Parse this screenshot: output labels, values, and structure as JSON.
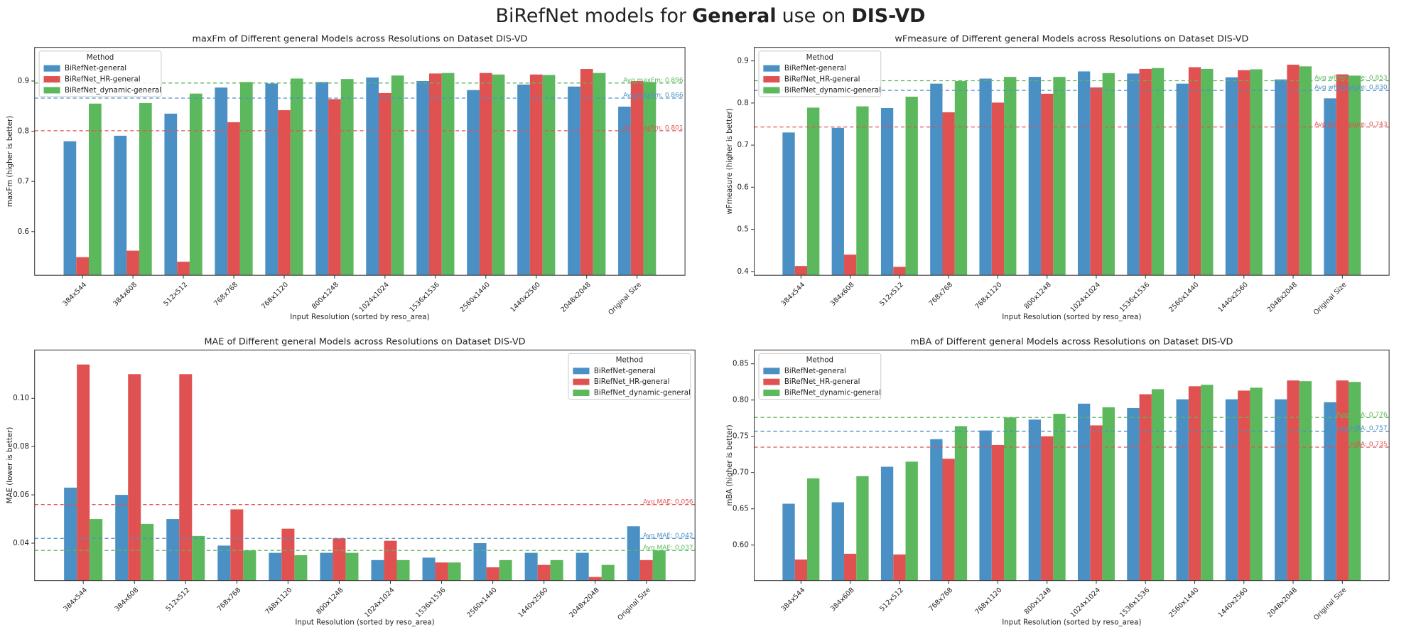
{
  "figure_title": [
    {
      "text": "BiRefNet models for",
      "bold": false
    },
    {
      "text": "General",
      "bold": true
    },
    {
      "text": "use on",
      "bold": false
    },
    {
      "text": "DIS-VD",
      "bold": true
    }
  ],
  "chart_data": [
    {
      "type": "bar",
      "title": "maxFm of Different general Models across Resolutions on Dataset DIS-VD",
      "xlabel": "Input Resolution (sorted by reso_area)",
      "ylabel": "maxFm (higher is better)",
      "categories": [
        "384x544",
        "384x608",
        "512x512",
        "768x768",
        "768x1120",
        "800x1248",
        "1024x1024",
        "1536x1536",
        "2560x1440",
        "1440x2560",
        "2048x2048",
        "Original Size"
      ],
      "series": [
        {
          "name": "BiRefNet-general",
          "color": "#4a90c4",
          "values": [
            0.78,
            0.791,
            0.835,
            0.887,
            0.895,
            0.898,
            0.907,
            0.9,
            0.882,
            0.893,
            0.889,
            0.849
          ]
        },
        {
          "name": "BiRefNet_HR-general",
          "color": "#e05252",
          "values": [
            0.549,
            0.562,
            0.54,
            0.818,
            0.842,
            0.864,
            0.876,
            0.915,
            0.916,
            0.913,
            0.924,
            0.9
          ]
        },
        {
          "name": "BiRefNet_dynamic-general",
          "color": "#5cb85c",
          "values": [
            0.855,
            0.856,
            0.875,
            0.898,
            0.905,
            0.904,
            0.911,
            0.916,
            0.913,
            0.912,
            0.916,
            0.898
          ]
        }
      ],
      "ylim": [
        0.513,
        0.967
      ],
      "yticks": [
        0.6,
        0.7,
        0.8,
        0.9
      ],
      "avg_lines": [
        {
          "value": 0.896,
          "label": "Avg maxFm: 0.896",
          "color": "#5cb85c"
        },
        {
          "value": 0.866,
          "label": "Avg maxFm: 0.866",
          "color": "#4a90c4"
        },
        {
          "value": 0.801,
          "label": "Avg maxFm: 0.801",
          "color": "#e05252"
        }
      ],
      "legend_title": "Method",
      "legend_loc": "upper left"
    },
    {
      "type": "bar",
      "title": "wFmeasure of Different general Models across Resolutions on Dataset DIS-VD",
      "xlabel": "Input Resolution (sorted by reso_area)",
      "ylabel": "wFmeasure (higher is better)",
      "categories": [
        "384x544",
        "384x608",
        "512x512",
        "768x768",
        "768x1120",
        "800x1248",
        "1024x1024",
        "1536x1536",
        "2560x1440",
        "1440x2560",
        "2048x2048",
        "Original Size"
      ],
      "series": [
        {
          "name": "BiRefNet-general",
          "color": "#4a90c4",
          "values": [
            0.73,
            0.741,
            0.788,
            0.846,
            0.858,
            0.862,
            0.875,
            0.87,
            0.846,
            0.861,
            0.856,
            0.811
          ]
        },
        {
          "name": "BiRefNet_HR-general",
          "color": "#e05252",
          "values": [
            0.413,
            0.44,
            0.411,
            0.778,
            0.801,
            0.822,
            0.837,
            0.881,
            0.885,
            0.878,
            0.891,
            0.868
          ]
        },
        {
          "name": "BiRefNet_dynamic-general",
          "color": "#5cb85c",
          "values": [
            0.789,
            0.792,
            0.815,
            0.852,
            0.862,
            0.862,
            0.871,
            0.883,
            0.881,
            0.88,
            0.887,
            0.865
          ]
        }
      ],
      "ylim": [
        0.391,
        0.932
      ],
      "yticks": [
        0.4,
        0.5,
        0.6,
        0.7,
        0.8,
        0.9
      ],
      "avg_lines": [
        {
          "value": 0.853,
          "label": "Avg wFmeasure: 0.853",
          "color": "#5cb85c"
        },
        {
          "value": 0.83,
          "label": "Avg wFmeasure: 0.830",
          "color": "#4a90c4"
        },
        {
          "value": 0.743,
          "label": "Avg wFmeasure: 0.743",
          "color": "#e05252"
        }
      ],
      "legend_title": "Method",
      "legend_loc": "upper left"
    },
    {
      "type": "bar",
      "title": "MAE of Different general Models across Resolutions on Dataset DIS-VD",
      "xlabel": "Input Resolution (sorted by reso_area)",
      "ylabel": "MAE (lower is better)",
      "categories": [
        "384x544",
        "384x608",
        "512x512",
        "768x768",
        "768x1120",
        "800x1248",
        "1024x1024",
        "1536x1536",
        "2560x1440",
        "1440x2560",
        "2048x2048",
        "Original Size"
      ],
      "series": [
        {
          "name": "BiRefNet-general",
          "color": "#4a90c4",
          "values": [
            0.063,
            0.06,
            0.05,
            0.039,
            0.036,
            0.036,
            0.033,
            0.034,
            0.04,
            0.036,
            0.036,
            0.047
          ]
        },
        {
          "name": "BiRefNet_HR-general",
          "color": "#e05252",
          "values": [
            0.114,
            0.11,
            0.11,
            0.054,
            0.046,
            0.042,
            0.041,
            0.032,
            0.03,
            0.031,
            0.026,
            0.033
          ]
        },
        {
          "name": "BiRefNet_dynamic-general",
          "color": "#5cb85c",
          "values": [
            0.05,
            0.048,
            0.043,
            0.037,
            0.035,
            0.036,
            0.033,
            0.032,
            0.033,
            0.033,
            0.031,
            0.037
          ]
        }
      ],
      "ylim": [
        0.0245,
        0.12
      ],
      "yticks": [
        0.04,
        0.06,
        0.08,
        {
          "value": 0.1,
          "label": "0.10"
        }
      ],
      "avg_lines": [
        {
          "value": 0.056,
          "label": "Avg MAE: 0.056",
          "color": "#e05252"
        },
        {
          "value": 0.042,
          "label": "Avg MAE: 0.042",
          "color": "#4a90c4"
        },
        {
          "value": 0.037,
          "label": "Avg MAE: 0.037",
          "color": "#5cb85c"
        }
      ],
      "legend_title": "Method",
      "legend_loc": "upper right"
    },
    {
      "type": "bar",
      "title": "mBA of Different general Models across Resolutions on Dataset DIS-VD",
      "xlabel": "Input Resolution (sorted by reso_area)",
      "ylabel": "mBA (higher is better)",
      "categories": [
        "384x544",
        "384x608",
        "512x512",
        "768x768",
        "768x1120",
        "800x1248",
        "1024x1024",
        "1536x1536",
        "2560x1440",
        "1440x2560",
        "2048x2048",
        "Original Size"
      ],
      "series": [
        {
          "name": "BiRefNet-general",
          "color": "#4a90c4",
          "values": [
            0.657,
            0.659,
            0.708,
            0.746,
            0.758,
            0.773,
            0.795,
            0.789,
            0.801,
            0.801,
            0.801,
            0.797
          ]
        },
        {
          "name": "BiRefNet_HR-general",
          "color": "#e05252",
          "values": [
            0.58,
            0.588,
            0.587,
            0.719,
            0.738,
            0.75,
            0.765,
            0.808,
            0.819,
            0.813,
            0.827,
            0.827
          ]
        },
        {
          "name": "BiRefNet_dynamic-general",
          "color": "#5cb85c",
          "values": [
            0.692,
            0.695,
            0.715,
            0.764,
            0.776,
            0.781,
            0.79,
            0.815,
            0.821,
            0.817,
            0.826,
            0.825
          ]
        }
      ],
      "ylim": [
        0.551,
        0.869
      ],
      "yticks": [
        {
          "value": 0.6,
          "label": "0.60"
        },
        0.65,
        {
          "value": 0.7,
          "label": "0.70"
        },
        0.75,
        {
          "value": 0.8,
          "label": "0.80"
        },
        0.85
      ],
      "avg_lines": [
        {
          "value": 0.776,
          "label": "Avg mBA: 0.776",
          "color": "#5cb85c"
        },
        {
          "value": 0.757,
          "label": "Avg mBA: 0.757",
          "color": "#4a90c4"
        },
        {
          "value": 0.735,
          "label": "Avg mBA: 0.735",
          "color": "#e05252"
        }
      ],
      "legend_title": "Method",
      "legend_loc": "upper left"
    }
  ]
}
